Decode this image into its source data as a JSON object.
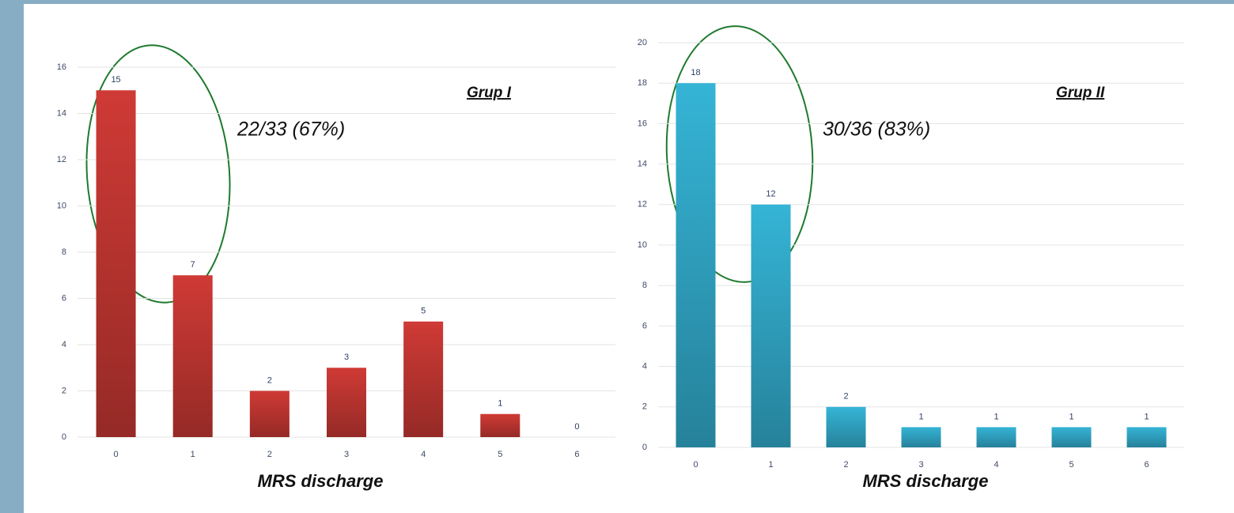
{
  "chart_data": [
    {
      "type": "bar",
      "title": "Grup I",
      "annotation": "22/33 (67%)",
      "x_label": "MRS discharge",
      "categories": [
        "0",
        "1",
        "2",
        "3",
        "4",
        "5",
        "6"
      ],
      "values": [
        15,
        7,
        2,
        3,
        5,
        1,
        0
      ],
      "color": "#cf3a35",
      "ylim": [
        0,
        16
      ],
      "yticks": [
        0,
        2,
        4,
        6,
        8,
        10,
        12,
        14,
        16
      ],
      "grid": true
    },
    {
      "type": "bar",
      "title": "Grup II",
      "annotation": "30/36 (83%)",
      "x_label": "MRS discharge",
      "categories": [
        "0",
        "1",
        "2",
        "3",
        "4",
        "5",
        "6"
      ],
      "values": [
        18,
        12,
        2,
        1,
        1,
        1,
        1
      ],
      "color": "#35b4d6",
      "ylim": [
        0,
        20
      ],
      "yticks": [
        0,
        2,
        4,
        6,
        8,
        10,
        12,
        14,
        16,
        18,
        20
      ],
      "grid": true
    }
  ]
}
